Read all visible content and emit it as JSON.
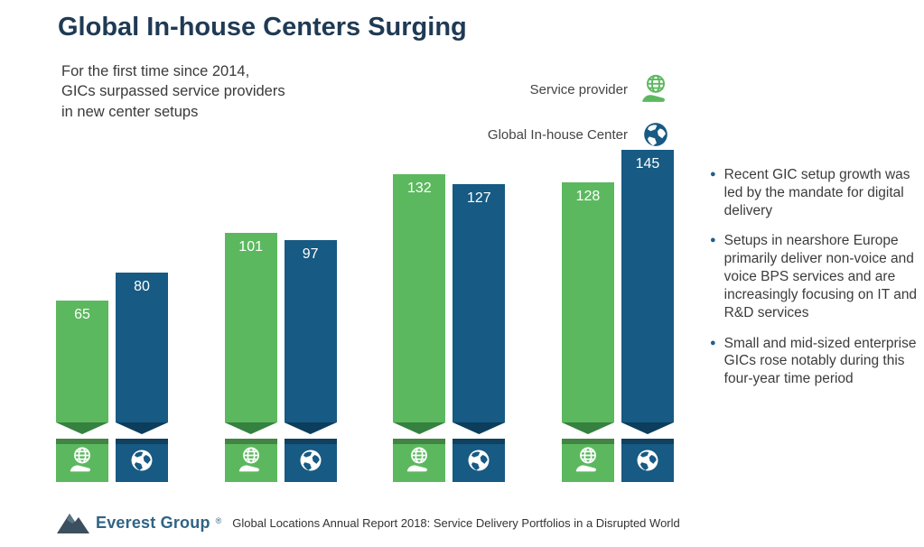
{
  "title": "Global In-house Centers Surging",
  "subtitle": "For the first time since 2014,\nGICs surpassed service providers\nin new center setups",
  "legend": [
    {
      "label": "Service provider",
      "icon": "hand-globe-icon",
      "color_key": "green"
    },
    {
      "label": "Global In-house Center",
      "icon": "globe-icon",
      "color_key": "blue"
    }
  ],
  "chart_data": {
    "type": "bar",
    "title": "Global In-house Centers Surging",
    "series": [
      {
        "name": "Service provider",
        "icon": "hand-globe-icon",
        "color": "#5CB85F",
        "color_dark": "#35813F",
        "values": [
          65,
          101,
          132,
          128
        ]
      },
      {
        "name": "Global In-house Center",
        "icon": "globe-icon",
        "color": "#175A83",
        "color_dark": "#0C3D5C",
        "values": [
          80,
          97,
          127,
          145
        ]
      }
    ],
    "value_labels_shown": true,
    "axes_shown": false,
    "grid": false,
    "ylim": [
      0,
      150
    ],
    "legend_position": "top-right"
  },
  "insights": [
    "Recent GIC setup growth was led by the mandate for digital delivery",
    "Setups in nearshore Europe primarily deliver non-voice and voice BPS services and are increasingly focusing on IT and R&D services",
    "Small and mid-sized enterprise GICs rose notably during this four-year time period"
  ],
  "footer": {
    "brand": "Everest Group",
    "reg_mark": "®",
    "caption": "Global Locations Annual Report 2018: Service Delivery Portfolios in a Disrupted World"
  },
  "colors": {
    "green": "#5CB85F",
    "green-dark": "#35813F",
    "blue": "#175A83",
    "blue-dark": "#0C3D5C",
    "title": "#1F3A54",
    "bullet": "#1F5F8B",
    "brand-blue": "#2F6485"
  }
}
